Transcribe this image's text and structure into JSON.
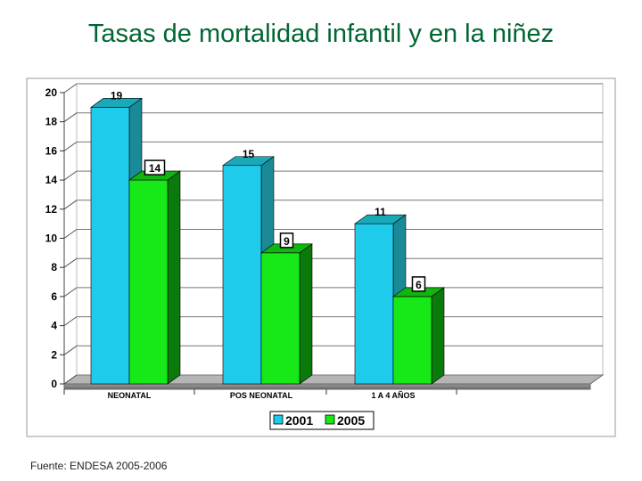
{
  "title": "Tasas de mortalidad infantil y en la niñez",
  "source": "Fuente: ENDESA 2005-2006",
  "chart_data": {
    "type": "bar",
    "categories": [
      "NEONATAL",
      "POS NEONATAL",
      "1 A 4 AÑOS"
    ],
    "series": [
      {
        "name": "2001",
        "values": [
          19,
          15,
          11
        ],
        "color": "#1ecbea",
        "side": "#1a8a96",
        "top": "#1aa9b8"
      },
      {
        "name": "2005",
        "values": [
          14,
          9,
          6
        ],
        "color": "#17e817",
        "side": "#0a7a0a",
        "top": "#11b411"
      }
    ],
    "ylim": [
      0,
      20
    ],
    "yticks": [
      0,
      2,
      4,
      6,
      8,
      10,
      12,
      14,
      16,
      18,
      20
    ],
    "labels": [
      "19",
      "14",
      "15",
      "9",
      "11",
      "6"
    ],
    "legend": "bottom-center",
    "grid": true
  }
}
